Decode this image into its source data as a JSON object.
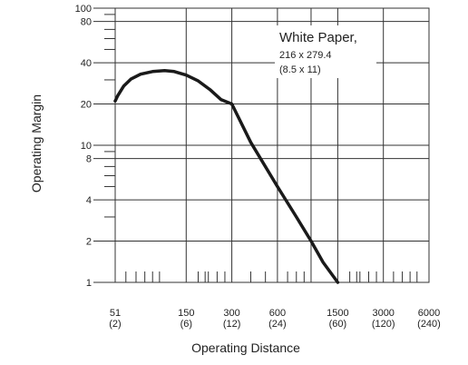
{
  "chart_data": {
    "type": "line",
    "xlabel": "Operating Distance",
    "ylabel": "Operating Margin",
    "x_scale": "log",
    "y_scale": "log",
    "xlim": [
      51,
      6000
    ],
    "ylim": [
      1,
      100
    ],
    "grid": true,
    "x_ticks": [
      {
        "value": 51,
        "label": "51",
        "sub": "(2)"
      },
      {
        "value": 150,
        "label": "150",
        "sub": "(6)"
      },
      {
        "value": 300,
        "label": "300",
        "sub": "(12)"
      },
      {
        "value": 600,
        "label": "600",
        "sub": "(24)"
      },
      {
        "value": 1500,
        "label": "1500",
        "sub": "(60)"
      },
      {
        "value": 3000,
        "label": "3000",
        "sub": "(120)"
      },
      {
        "value": 6000,
        "label": "6000",
        "sub": "(240)"
      }
    ],
    "y_ticks": [
      {
        "value": 1,
        "label": "1"
      },
      {
        "value": 2,
        "label": "2"
      },
      {
        "value": 4,
        "label": "4"
      },
      {
        "value": 8,
        "label": "8"
      },
      {
        "value": 10,
        "label": "10"
      },
      {
        "value": 20,
        "label": "20"
      },
      {
        "value": 40,
        "label": "40"
      },
      {
        "value": 80,
        "label": "80"
      },
      {
        "value": 100,
        "label": "100"
      }
    ],
    "series": [
      {
        "x": [
          51,
          53,
          58,
          65,
          75,
          90,
          108,
          125,
          150,
          180,
          215,
          255,
          300,
          400,
          600,
          800,
          1000,
          1200,
          1500
        ],
        "y": [
          21,
          23,
          27,
          30.5,
          33,
          34.5,
          35,
          34.5,
          32.5,
          29.5,
          25.5,
          21.5,
          20,
          10.5,
          5,
          3,
          2,
          1.4,
          1
        ]
      }
    ],
    "annotations": [
      {
        "text": "White Paper,",
        "lines": [
          "216 x 279.4",
          "(8.5 x 11)"
        ]
      }
    ]
  }
}
